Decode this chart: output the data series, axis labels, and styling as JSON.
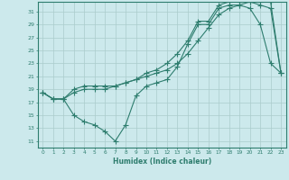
{
  "xlabel": "Humidex (Indice chaleur)",
  "bg_color": "#cce9ec",
  "line_color": "#2e7d6e",
  "xlim": [
    -0.5,
    23.5
  ],
  "ylim": [
    10,
    32.5
  ],
  "xticks": [
    0,
    1,
    2,
    3,
    4,
    5,
    6,
    7,
    8,
    9,
    10,
    11,
    12,
    13,
    14,
    15,
    16,
    17,
    18,
    19,
    20,
    21,
    22,
    23
  ],
  "yticks": [
    11,
    13,
    15,
    17,
    19,
    21,
    23,
    25,
    27,
    29,
    31
  ],
  "line1_x": [
    0,
    1,
    2,
    3,
    4,
    5,
    6,
    7,
    8,
    9,
    10,
    11,
    12,
    13,
    14,
    15,
    16,
    17,
    18,
    19,
    20,
    21,
    22,
    23
  ],
  "line1_y": [
    18.5,
    17.5,
    17.5,
    15.0,
    14.0,
    13.5,
    12.5,
    11.0,
    13.5,
    18.0,
    19.5,
    20.0,
    20.5,
    22.5,
    26.0,
    29.0,
    29.0,
    31.5,
    32.0,
    32.0,
    31.5,
    29.0,
    23.0,
    21.5
  ],
  "line2_x": [
    0,
    1,
    2,
    3,
    4,
    5,
    6,
    7,
    8,
    9,
    10,
    11,
    12,
    13,
    14,
    15,
    16,
    17,
    18,
    19,
    20,
    21,
    22,
    23
  ],
  "line2_y": [
    18.5,
    17.5,
    17.5,
    19.0,
    19.5,
    19.5,
    19.5,
    19.5,
    20.0,
    20.5,
    21.0,
    21.5,
    22.0,
    23.0,
    24.5,
    26.5,
    28.5,
    30.5,
    31.5,
    32.0,
    32.5,
    32.0,
    31.5,
    21.5
  ],
  "line3_x": [
    0,
    1,
    2,
    3,
    4,
    5,
    6,
    7,
    8,
    9,
    10,
    11,
    12,
    13,
    14,
    15,
    16,
    17,
    18,
    19,
    20,
    21,
    22,
    23
  ],
  "line3_y": [
    18.5,
    17.5,
    17.5,
    18.5,
    19.0,
    19.0,
    19.0,
    19.5,
    20.0,
    20.5,
    21.5,
    22.0,
    23.0,
    24.5,
    26.5,
    29.5,
    29.5,
    32.0,
    32.5,
    32.5,
    32.5,
    32.5,
    32.5,
    21.5
  ],
  "grid_color": "#aacccc",
  "marker": "+",
  "markersize": 4,
  "linewidth": 0.8
}
